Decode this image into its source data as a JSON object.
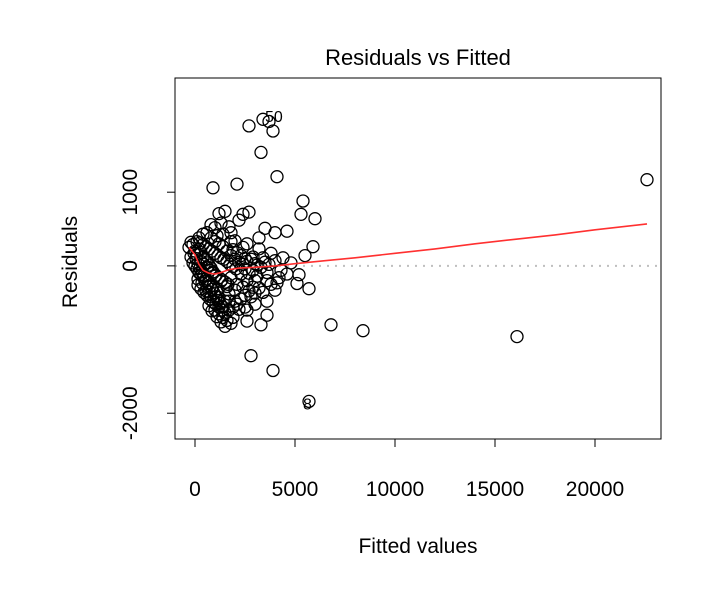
{
  "chart_data": {
    "type": "scatter",
    "title": "Residuals vs Fitted",
    "xlabel": "Fitted values",
    "ylabel": "Residuals",
    "xlim": [
      -1000,
      23300
    ],
    "ylim": [
      -2350,
      2550
    ],
    "x_ticks": [
      0,
      5000,
      10000,
      15000,
      20000
    ],
    "y_ticks": [
      -2000,
      0,
      1000
    ],
    "y_tick_labels": [
      "-2000",
      "0",
      "1000"
    ],
    "reference_line": {
      "y": 0,
      "style": "dotted",
      "color": "#bfbfbf"
    },
    "smoother_color": "#ff3030",
    "point_style": "open-circle",
    "point_labels": [
      {
        "text": "50",
        "x": 3500,
        "y": 2020
      },
      {
        "text": "8",
        "x": 5400,
        "y": -1880
      }
    ],
    "points": [
      [
        22600,
        1170
      ],
      [
        16100,
        -960
      ],
      [
        8400,
        -880
      ],
      [
        6800,
        -800
      ],
      [
        5700,
        -1840
      ],
      [
        2700,
        1900
      ],
      [
        3400,
        1990
      ],
      [
        3700,
        1960
      ],
      [
        3900,
        1830
      ],
      [
        3300,
        1540
      ],
      [
        4100,
        1210
      ],
      [
        2100,
        1110
      ],
      [
        900,
        1060
      ],
      [
        5400,
        880
      ],
      [
        6000,
        640
      ],
      [
        5300,
        700
      ],
      [
        4600,
        470
      ],
      [
        4000,
        450
      ],
      [
        5900,
        260
      ],
      [
        5500,
        140
      ],
      [
        4600,
        -110
      ],
      [
        5200,
        -120
      ],
      [
        5100,
        -240
      ],
      [
        5700,
        -310
      ],
      [
        4100,
        -230
      ],
      [
        3600,
        -480
      ],
      [
        3300,
        -800
      ],
      [
        2600,
        -750
      ],
      [
        3000,
        -370
      ],
      [
        2800,
        -1220
      ],
      [
        3900,
        -1420
      ],
      [
        3600,
        -670
      ],
      [
        2500,
        -560
      ],
      [
        1900,
        -700
      ],
      [
        3100,
        10
      ],
      [
        2900,
        120
      ],
      [
        2400,
        250
      ],
      [
        2200,
        620
      ],
      [
        2700,
        730
      ],
      [
        2400,
        700
      ],
      [
        3200,
        380
      ],
      [
        3500,
        510
      ],
      [
        2000,
        340
      ],
      [
        1700,
        530
      ],
      [
        1800,
        330
      ],
      [
        1500,
        740
      ],
      [
        1200,
        710
      ],
      [
        1300,
        580
      ],
      [
        1000,
        520
      ],
      [
        1100,
        410
      ],
      [
        2600,
        -200
      ],
      [
        2300,
        -110
      ],
      [
        2000,
        -330
      ],
      [
        1700,
        -380
      ],
      [
        1500,
        -480
      ],
      [
        1400,
        -560
      ],
      [
        1200,
        -430
      ],
      [
        1800,
        -160
      ],
      [
        2500,
        -40
      ],
      [
        3000,
        -200
      ],
      [
        3400,
        110
      ],
      [
        3600,
        -90
      ],
      [
        4000,
        70
      ],
      [
        4300,
        -60
      ],
      [
        2200,
        -590
      ],
      [
        2000,
        -480
      ],
      [
        1600,
        -280
      ],
      [
        1300,
        -210
      ],
      [
        1100,
        -330
      ],
      [
        900,
        -270
      ],
      [
        800,
        -420
      ],
      [
        700,
        -350
      ],
      [
        600,
        -280
      ],
      [
        500,
        -210
      ],
      [
        400,
        -150
      ],
      [
        300,
        -120
      ],
      [
        200,
        -90
      ],
      [
        100,
        -40
      ],
      [
        0,
        0
      ],
      [
        -100,
        40
      ],
      [
        -200,
        120
      ],
      [
        -300,
        250
      ],
      [
        -200,
        320
      ],
      [
        -100,
        290
      ],
      [
        0,
        200
      ],
      [
        100,
        150
      ],
      [
        200,
        230
      ],
      [
        300,
        180
      ],
      [
        400,
        120
      ],
      [
        500,
        80
      ],
      [
        600,
        40
      ],
      [
        700,
        10
      ],
      [
        800,
        -30
      ],
      [
        900,
        -80
      ],
      [
        1000,
        -140
      ],
      [
        100,
        330
      ],
      [
        250,
        310
      ],
      [
        400,
        290
      ],
      [
        550,
        260
      ],
      [
        700,
        230
      ],
      [
        850,
        200
      ],
      [
        1000,
        170
      ],
      [
        1150,
        140
      ],
      [
        1300,
        110
      ],
      [
        1450,
        90
      ],
      [
        1600,
        60
      ],
      [
        1750,
        20
      ],
      [
        1900,
        -10
      ],
      [
        2050,
        -40
      ],
      [
        300,
        60
      ],
      [
        450,
        20
      ],
      [
        600,
        -20
      ],
      [
        750,
        -60
      ],
      [
        900,
        -100
      ],
      [
        1050,
        -130
      ],
      [
        1200,
        -160
      ],
      [
        1350,
        -190
      ],
      [
        1500,
        -220
      ],
      [
        1650,
        -250
      ],
      [
        150,
        -260
      ],
      [
        300,
        -310
      ],
      [
        450,
        -360
      ],
      [
        600,
        -400
      ],
      [
        750,
        -450
      ],
      [
        900,
        -490
      ],
      [
        1050,
        -520
      ],
      [
        1200,
        -560
      ],
      [
        1350,
        -600
      ],
      [
        1500,
        -640
      ],
      [
        -50,
        170
      ],
      [
        50,
        100
      ],
      [
        150,
        30
      ],
      [
        250,
        -30
      ],
      [
        350,
        -80
      ],
      [
        450,
        -130
      ],
      [
        550,
        -180
      ],
      [
        650,
        -230
      ],
      [
        750,
        -280
      ],
      [
        850,
        -320
      ],
      [
        950,
        -370
      ],
      [
        1050,
        -420
      ],
      [
        1150,
        -470
      ],
      [
        1250,
        -510
      ],
      [
        1350,
        -550
      ],
      [
        200,
        380
      ],
      [
        400,
        430
      ],
      [
        600,
        450
      ],
      [
        800,
        380
      ],
      [
        1000,
        330
      ],
      [
        1200,
        300
      ],
      [
        1400,
        260
      ],
      [
        1600,
        200
      ],
      [
        1800,
        140
      ],
      [
        2000,
        90
      ],
      [
        2200,
        50
      ],
      [
        2400,
        20
      ],
      [
        2600,
        60
      ],
      [
        2800,
        90
      ],
      [
        3000,
        30
      ],
      [
        1900,
        220
      ],
      [
        2100,
        180
      ],
      [
        2300,
        140
      ],
      [
        2500,
        100
      ],
      [
        2700,
        -100
      ],
      [
        2900,
        -60
      ],
      [
        3100,
        -140
      ],
      [
        3300,
        -20
      ],
      [
        3500,
        50
      ],
      [
        3700,
        20
      ],
      [
        1700,
        -600
      ],
      [
        1900,
        -560
      ],
      [
        2100,
        -520
      ],
      [
        2300,
        -450
      ],
      [
        2500,
        -400
      ],
      [
        2700,
        -340
      ],
      [
        2900,
        -290
      ],
      [
        1000,
        -600
      ],
      [
        1200,
        -650
      ],
      [
        1400,
        -700
      ],
      [
        1600,
        -740
      ],
      [
        1800,
        -780
      ],
      [
        800,
        560
      ],
      [
        1400,
        430
      ],
      [
        1800,
        450
      ],
      [
        2600,
        300
      ],
      [
        3200,
        230
      ],
      [
        3800,
        170
      ],
      [
        4400,
        110
      ],
      [
        4800,
        40
      ],
      [
        4200,
        -160
      ],
      [
        3800,
        -250
      ],
      [
        3400,
        -360
      ],
      [
        3000,
        -520
      ],
      [
        2600,
        -600
      ],
      [
        150,
        -180
      ],
      [
        350,
        -230
      ],
      [
        550,
        -340
      ],
      [
        700,
        -540
      ],
      [
        850,
        -610
      ],
      [
        1100,
        -690
      ],
      [
        1300,
        -760
      ],
      [
        1500,
        -820
      ],
      [
        1700,
        -480
      ],
      [
        2100,
        -250
      ],
      [
        2400,
        -290
      ],
      [
        2800,
        -420
      ],
      [
        3200,
        -300
      ],
      [
        3600,
        -200
      ],
      [
        4000,
        -330
      ]
    ],
    "smoother": [
      [
        -300,
        250
      ],
      [
        0,
        150
      ],
      [
        200,
        20
      ],
      [
        400,
        -60
      ],
      [
        700,
        -100
      ],
      [
        1000,
        -110
      ],
      [
        1300,
        -90
      ],
      [
        1700,
        -50
      ],
      [
        2200,
        -30
      ],
      [
        3000,
        -20
      ],
      [
        4000,
        0
      ],
      [
        5000,
        30
      ],
      [
        6500,
        70
      ],
      [
        8000,
        110
      ],
      [
        10000,
        170
      ],
      [
        12000,
        230
      ],
      [
        14000,
        300
      ],
      [
        16000,
        360
      ],
      [
        18000,
        420
      ],
      [
        20000,
        490
      ],
      [
        22600,
        570
      ]
    ]
  }
}
